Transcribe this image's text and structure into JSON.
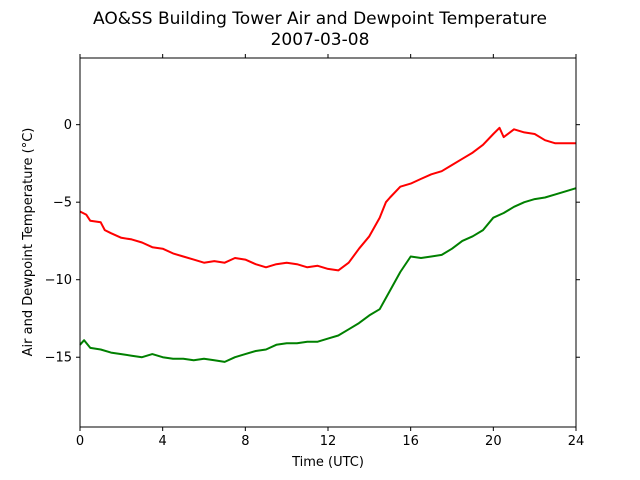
{
  "chart_data": {
    "type": "line",
    "title": "AO&SS Building Tower Air and Dewpoint Temperature",
    "subtitle": "2007-03-08",
    "xlabel": "Time (UTC)",
    "ylabel": "Air and Dewpoint Temperature (°C)",
    "xlim": [
      0,
      24
    ],
    "ylim": [
      -19.5,
      4.3
    ],
    "xticks": [
      0,
      4,
      8,
      12,
      16,
      20,
      24
    ],
    "yticks": [
      -15,
      -10,
      -5,
      0
    ],
    "grid": false,
    "legend": "none",
    "series": [
      {
        "color": "#ff0000",
        "x": [
          0,
          0.3,
          0.5,
          1,
          1.2,
          1.5,
          2,
          2.5,
          3,
          3.5,
          4,
          4.5,
          5,
          5.5,
          6,
          6.5,
          7,
          7.5,
          8,
          8.5,
          9,
          9.5,
          10,
          10.5,
          11,
          11.5,
          12,
          12.5,
          13,
          13.5,
          14,
          14.5,
          14.8,
          15,
          15.5,
          16,
          16.5,
          17,
          17.5,
          18,
          18.5,
          19,
          19.5,
          20,
          20.3,
          20.5,
          21,
          21.5,
          22,
          22.5,
          23,
          23.5,
          24
        ],
        "values": [
          -5.6,
          -5.8,
          -6.2,
          -6.3,
          -6.8,
          -7.0,
          -7.3,
          -7.4,
          -7.6,
          -7.9,
          -8.0,
          -8.3,
          -8.5,
          -8.7,
          -8.9,
          -8.8,
          -8.9,
          -8.6,
          -8.7,
          -9.0,
          -9.2,
          -9.0,
          -8.9,
          -9.0,
          -9.2,
          -9.1,
          -9.3,
          -9.4,
          -8.9,
          -8.0,
          -7.2,
          -6.0,
          -5.0,
          -4.7,
          -4.0,
          -3.8,
          -3.5,
          -3.2,
          -3.0,
          -2.6,
          -2.2,
          -1.8,
          -1.3,
          -0.6,
          -0.2,
          -0.8,
          -0.3,
          -0.5,
          -0.6,
          -1.0,
          -1.2,
          -1.2,
          -1.2
        ]
      },
      {
        "color": "#008000",
        "x": [
          0,
          0.2,
          0.5,
          1,
          1.5,
          2,
          2.5,
          3,
          3.5,
          4,
          4.5,
          5,
          5.5,
          6,
          6.5,
          7,
          7.5,
          8,
          8.5,
          9,
          9.5,
          10,
          10.5,
          11,
          11.5,
          12,
          12.5,
          13,
          13.5,
          14,
          14.5,
          15,
          15.5,
          16,
          16.5,
          17,
          17.5,
          18,
          18.5,
          19,
          19.5,
          20,
          20.5,
          21,
          21.5,
          22,
          22.5,
          23,
          23.5,
          24
        ],
        "values": [
          -14.2,
          -13.9,
          -14.4,
          -14.5,
          -14.7,
          -14.8,
          -14.9,
          -15.0,
          -14.8,
          -15.0,
          -15.1,
          -15.1,
          -15.2,
          -15.1,
          -15.2,
          -15.3,
          -15.0,
          -14.8,
          -14.6,
          -14.5,
          -14.2,
          -14.1,
          -14.1,
          -14.0,
          -14.0,
          -13.8,
          -13.6,
          -13.2,
          -12.8,
          -12.3,
          -11.9,
          -10.7,
          -9.5,
          -8.5,
          -8.6,
          -8.5,
          -8.4,
          -8.0,
          -7.5,
          -7.2,
          -6.8,
          -6.0,
          -5.7,
          -5.3,
          -5.0,
          -4.8,
          -4.7,
          -4.5,
          -4.3,
          -4.1
        ]
      }
    ]
  }
}
